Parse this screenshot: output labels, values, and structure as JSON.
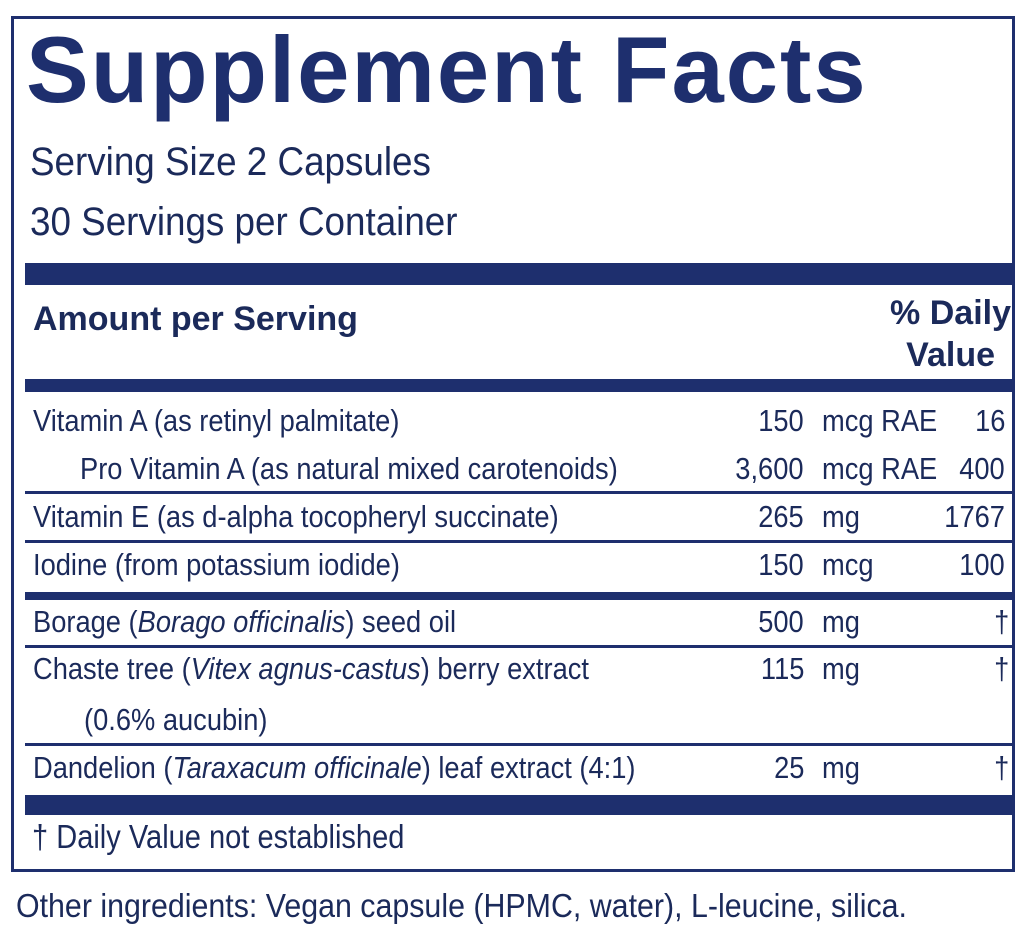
{
  "title": "Supplement Facts",
  "serving_size": "Serving Size  2 Capsules",
  "servings_per_container": "30 Servings per Container",
  "header": {
    "amount_label": "Amount per Serving",
    "dv_line1": "% Daily",
    "dv_line2": "Value"
  },
  "rows": [
    {
      "name": "Vitamin A (as retinyl palmitate)",
      "amount": "150",
      "unit": "mcg RAE",
      "dv": "16"
    },
    {
      "name": "Pro Vitamin A (as natural mixed carotenoids)",
      "amount": "3,600",
      "unit": "mcg RAE",
      "dv": "400"
    },
    {
      "name": "Vitamin E (as d-alpha tocopheryl succinate)",
      "amount": "265",
      "unit": "mg",
      "dv": "1767"
    },
    {
      "name": "Iodine (from potassium iodide)",
      "amount": "150",
      "unit": "mcg",
      "dv": "100"
    },
    {
      "name_pre": "Borage (",
      "name_it": "Borago officinalis",
      "name_post": ") seed oil",
      "amount": "500",
      "unit": "mg",
      "dv": "†"
    },
    {
      "name_pre": "Chaste tree (",
      "name_it": "Vitex agnus-castus",
      "name_post": ") berry extract",
      "name_line2": "(0.6% aucubin)",
      "amount": "115",
      "unit": "mg",
      "dv": "†"
    },
    {
      "name_pre": "Dandelion (",
      "name_it": "Taraxacum officinale",
      "name_post": ") leaf extract (4:1)",
      "amount": "25",
      "unit": "mg",
      "dv": "†"
    }
  ],
  "footnote": "†  Daily Value not established",
  "other_ingredients": "Other ingredients: Vegan capsule (HPMC, water), L-leucine, silica.",
  "colors": {
    "navy": "#1e2f6e",
    "text": "#1b2a5a"
  }
}
